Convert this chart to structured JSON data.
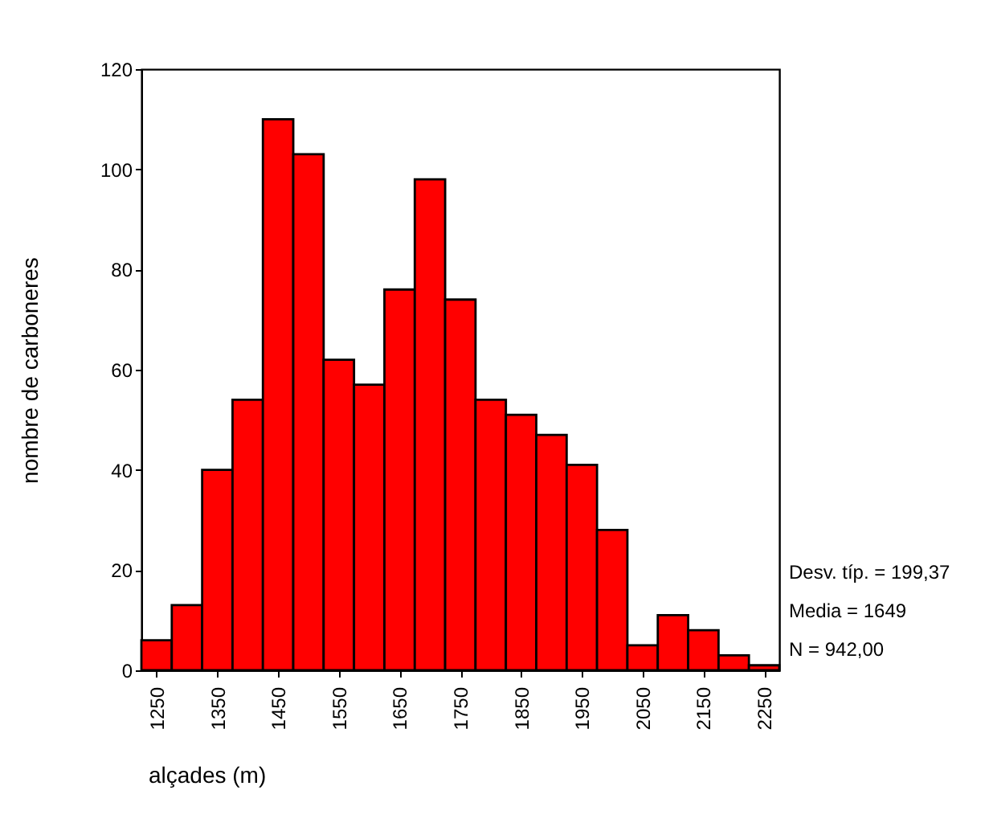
{
  "chart_data": {
    "type": "histogram",
    "xlabel": "alçades (m)",
    "ylabel": "nombre de carboneres",
    "bins": [
      1225,
      1275,
      1325,
      1375,
      1425,
      1475,
      1525,
      1575,
      1625,
      1675,
      1725,
      1775,
      1825,
      1875,
      1925,
      1975,
      2025,
      2075,
      2125,
      2175,
      2225,
      2275
    ],
    "values": [
      6,
      13,
      40,
      54,
      110,
      103,
      62,
      57,
      76,
      98,
      74,
      54,
      51,
      47,
      41,
      28,
      5,
      11,
      8,
      3,
      1
    ],
    "color": "#ff0000",
    "xlim": [
      1225,
      2275
    ],
    "xticks": [
      1250,
      1350,
      1450,
      1550,
      1650,
      1750,
      1850,
      1950,
      2050,
      2150,
      2250
    ],
    "ylim": [
      0,
      120
    ],
    "yticks": [
      0,
      20,
      40,
      60,
      80,
      100,
      120
    ],
    "grid": false,
    "annotations": [
      "Desv. típ. = 199,37",
      "Media = 1649",
      "N = 942,00"
    ]
  }
}
